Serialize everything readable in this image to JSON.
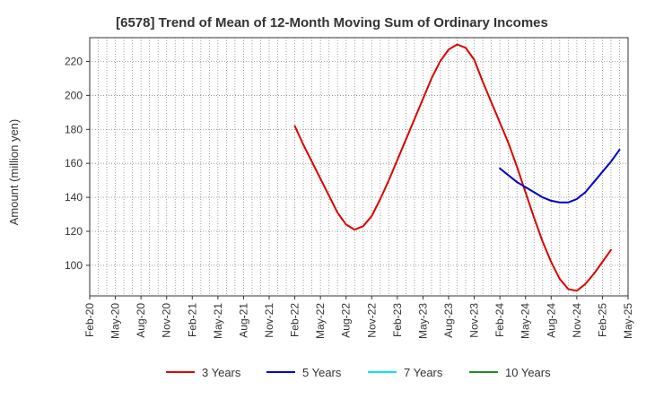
{
  "chart_data": {
    "type": "line",
    "title": "[6578]  Trend of Mean of 12-Month Moving Sum of Ordinary Incomes",
    "xlabel": "",
    "ylabel": "Amount (million yen)",
    "x_ticks": [
      "Feb-20",
      "May-20",
      "Aug-20",
      "Nov-20",
      "Feb-21",
      "May-21",
      "Aug-21",
      "Nov-21",
      "Feb-22",
      "May-22",
      "Aug-22",
      "Nov-22",
      "Feb-23",
      "May-23",
      "Aug-23",
      "Nov-23",
      "Feb-24",
      "May-24",
      "Aug-24",
      "Nov-24",
      "Feb-25",
      "May-25"
    ],
    "y_ticks": [
      100,
      120,
      140,
      160,
      180,
      200,
      220
    ],
    "ylim": [
      82,
      234
    ],
    "grid": true,
    "legend_position": "bottom",
    "series": [
      {
        "name": "3 Years",
        "color": "#dd0000",
        "start": "Feb-22",
        "values": [
          182,
          171,
          161,
          151,
          141,
          131,
          124,
          121,
          123,
          129,
          139,
          150,
          162,
          174,
          186,
          198,
          210,
          220,
          227,
          230,
          228,
          221,
          208,
          196,
          184,
          172,
          158,
          143,
          128,
          114,
          102,
          92,
          86,
          85,
          89,
          95,
          102,
          109
        ]
      },
      {
        "name": "5 Years",
        "color": "#0000cc",
        "start": "Feb-24",
        "values": [
          157,
          153,
          149,
          146,
          143,
          140,
          138,
          137,
          137,
          139,
          143,
          149,
          155,
          161,
          168
        ]
      },
      {
        "name": "7 Years",
        "color": "#00e5ee",
        "start": null,
        "values": []
      },
      {
        "name": "10 Years",
        "color": "#228b22",
        "start": null,
        "values": []
      }
    ]
  }
}
